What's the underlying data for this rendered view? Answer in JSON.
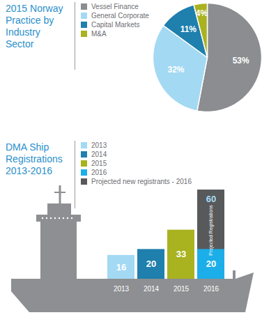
{
  "chart_data": [
    {
      "type": "pie",
      "title": "2015 Norway Practice by Industry Sector",
      "categories": [
        "Vessel Finance",
        "General Corporate",
        "Capital Markets",
        "M&A"
      ],
      "values": [
        53,
        32,
        11,
        4
      ],
      "value_labels": [
        "53%",
        "32%",
        "11%",
        "4%"
      ],
      "colors": [
        "#8b8d90",
        "#a3d9f3",
        "#1f7fad",
        "#a9b21f"
      ],
      "data_labels": true,
      "legend": "top"
    },
    {
      "type": "bar",
      "title": "DMA Ship Registrations 2013-2016",
      "categories": [
        "2013",
        "2014",
        "2015",
        "2016"
      ],
      "series": [
        {
          "name": "2013",
          "color": "#a3d9f3",
          "values": [
            16,
            null,
            null,
            null
          ]
        },
        {
          "name": "2014",
          "color": "#1f7fad",
          "values": [
            null,
            20,
            null,
            null
          ]
        },
        {
          "name": "2015",
          "color": "#a9b21f",
          "values": [
            null,
            null,
            33,
            null
          ]
        },
        {
          "name": "2016",
          "color": "#1caee8",
          "values": [
            null,
            null,
            null,
            20
          ]
        },
        {
          "name": "Projected new registrants - 2016",
          "color": "#58595b",
          "values": [
            null,
            null,
            null,
            60
          ]
        }
      ],
      "ylim": [
        0,
        60
      ],
      "stacked": false,
      "data_labels": true,
      "tick_labels": "x",
      "legend": "top",
      "annotations": [
        {
          "text": "Projected Registrations",
          "category": "2016",
          "series": "Projected new registrants - 2016"
        }
      ]
    }
  ]
}
